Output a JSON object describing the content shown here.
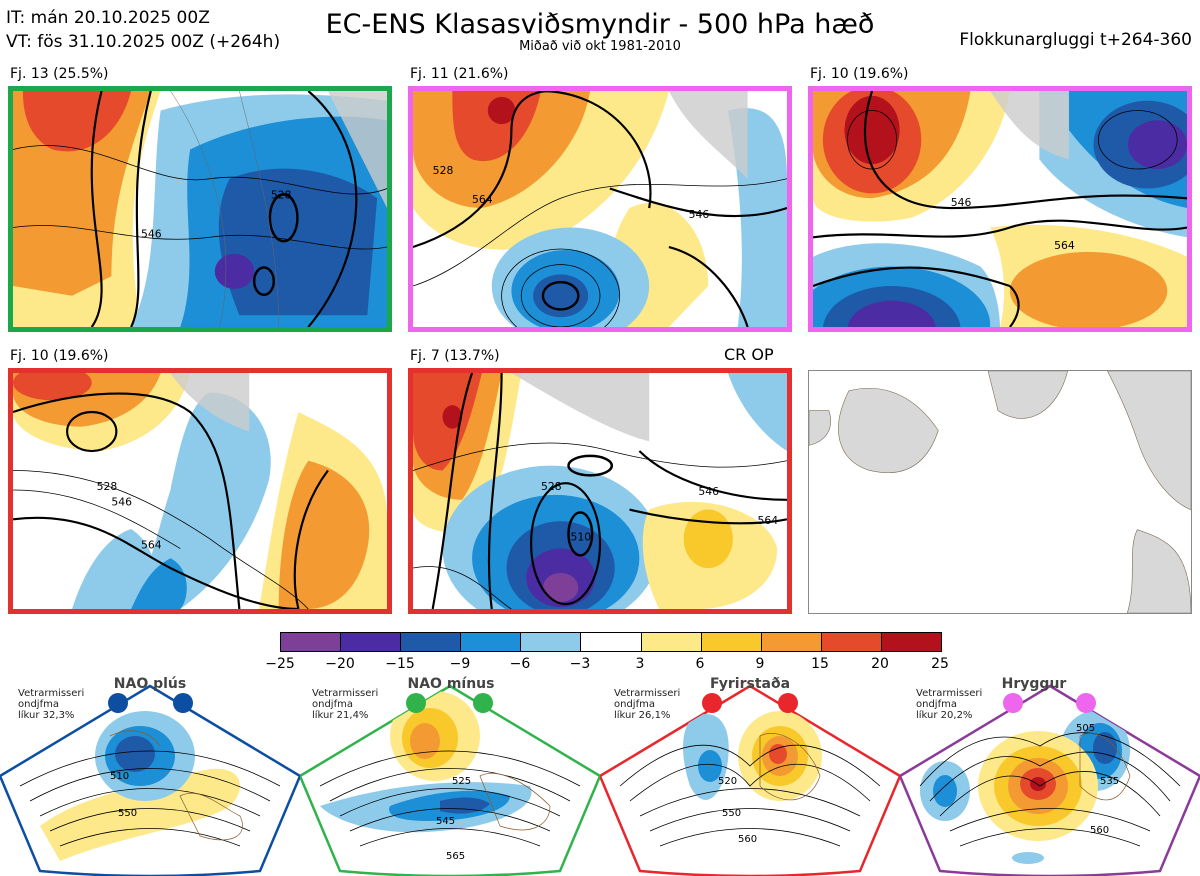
{
  "header": {
    "init_line": "IT: mán 20.10.2025 00Z",
    "valid_line": "VT: fös 31.10.2025 00Z  (+264h)",
    "title": "EC-ENS Klasasviðsmyndir - 500 hPa hæð",
    "subtitle": "Miðað við okt 1981-2010",
    "window": "Flokkunargluggi t+264-360"
  },
  "panels": [
    {
      "label": "Fj. 13 (25.5%)",
      "border": "#1aa84a",
      "regime": "NAO mínus"
    },
    {
      "label": "Fj. 11 (21.6%)",
      "border": "#ee66ee",
      "regime": "Hryggur"
    },
    {
      "label": "Fj. 10 (19.6%)",
      "border": "#ee66ee",
      "regime": "Hryggur"
    },
    {
      "label": "Fj. 10 (19.6%)",
      "border": "#e53030",
      "regime": "Fyrirstaða"
    },
    {
      "label": "Fj. 7 (13.7%)",
      "border": "#e53030",
      "regime": "Fyrirstaða",
      "tag": "CR OP"
    }
  ],
  "contour_labels": [
    "546",
    "528",
    "564",
    "510",
    "520"
  ],
  "colorbar": {
    "ticks": [
      "−25",
      "−20",
      "−15",
      "−9",
      "−6",
      "−3",
      "3",
      "6",
      "9",
      "15",
      "20",
      "25"
    ],
    "colors": [
      "#7e3f98",
      "#4b2ca3",
      "#1f5aa8",
      "#1c8fd6",
      "#8ecbeb",
      "#ffffff",
      "#fde98a",
      "#f9c82b",
      "#f39a33",
      "#e64a2c",
      "#b3121c"
    ]
  },
  "regimes": [
    {
      "name": "NAO plús",
      "prob_lines": [
        "Vetrarmisseri",
        "ondjfma",
        "líkur 32,3%"
      ],
      "color": "#0b4ea2",
      "contours": [
        "510",
        "550"
      ]
    },
    {
      "name": "NAO mínus",
      "prob_lines": [
        "Vetrarmisseri",
        "ondjfma",
        "líkur 21,4%"
      ],
      "color": "#2fb34a",
      "contours": [
        "525",
        "545",
        "565"
      ]
    },
    {
      "name": "Fyrirstaða",
      "prob_lines": [
        "Vetrarmisseri",
        "ondjfma",
        "líkur 26,1%"
      ],
      "color": "#e8262b",
      "contours": [
        "520",
        "550",
        "560"
      ]
    },
    {
      "name": "Hryggur",
      "prob_lines": [
        "Vetrarmisseri",
        "ondjfma",
        "líkur 20,2%"
      ],
      "color": "#ee66ee",
      "contours": [
        "505",
        "535",
        "560"
      ]
    }
  ]
}
